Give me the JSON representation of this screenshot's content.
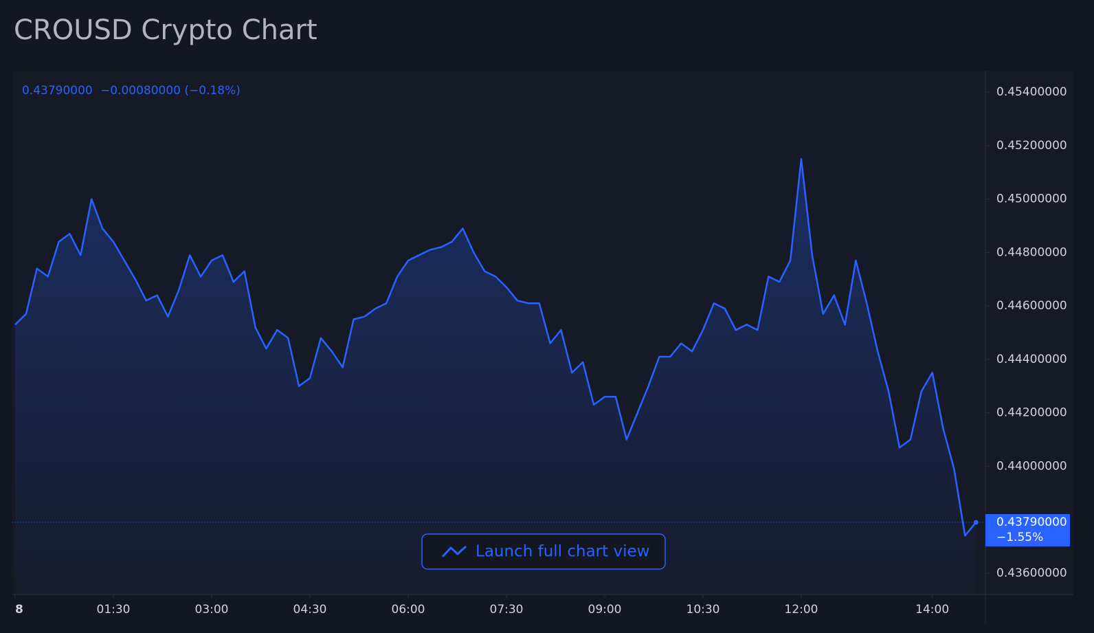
{
  "chart_data": {
    "type": "line",
    "title": "CROUSD Crypto Chart",
    "legend_change": "−0.00080000 (−0.18%)",
    "last_price": {
      "value": 0.4379,
      "label": "0.43790000",
      "change": "−1.55%"
    },
    "button": "Launch full chart view",
    "x": [
      "00:00",
      "00:10",
      "00:20",
      "00:30",
      "00:40",
      "00:50",
      "01:00",
      "01:10",
      "01:20",
      "01:30",
      "01:40",
      "01:50",
      "02:00",
      "02:10",
      "02:20",
      "02:30",
      "02:40",
      "02:50",
      "03:00",
      "03:10",
      "03:20",
      "03:30",
      "03:40",
      "03:50",
      "04:00",
      "04:10",
      "04:20",
      "04:30",
      "04:40",
      "04:50",
      "05:00",
      "05:10",
      "05:20",
      "05:30",
      "05:40",
      "05:50",
      "06:00",
      "06:10",
      "06:20",
      "06:30",
      "06:40",
      "06:50",
      "07:00",
      "07:10",
      "07:20",
      "07:30",
      "07:40",
      "07:50",
      "08:00",
      "08:10",
      "08:20",
      "08:30",
      "08:40",
      "08:50",
      "09:00",
      "09:10",
      "09:20",
      "09:30",
      "09:40",
      "09:50",
      "10:00",
      "10:10",
      "10:20",
      "10:30",
      "10:40",
      "10:50",
      "11:00",
      "11:10",
      "11:20",
      "11:30",
      "11:40",
      "11:50",
      "12:00",
      "12:10",
      "12:20",
      "12:30",
      "12:40",
      "12:50",
      "13:00",
      "13:10",
      "13:20",
      "13:30",
      "13:40",
      "13:50",
      "14:00",
      "14:10",
      "14:20",
      "14:30",
      "14:40"
    ],
    "series": [
      {
        "name": "CROUSD",
        "color": "#2962ff",
        "values": [
          0.4453,
          0.4457,
          0.4474,
          0.4471,
          0.4484,
          0.4487,
          0.4479,
          0.45,
          0.4489,
          0.4484,
          0.4477,
          0.447,
          0.4462,
          0.4464,
          0.4456,
          0.4466,
          0.4479,
          0.4471,
          0.4477,
          0.4479,
          0.4469,
          0.4473,
          0.4452,
          0.4444,
          0.4451,
          0.4448,
          0.443,
          0.4433,
          0.4448,
          0.4443,
          0.4437,
          0.4455,
          0.4456,
          0.4459,
          0.4461,
          0.4471,
          0.4477,
          0.4479,
          0.4481,
          0.4482,
          0.4484,
          0.4489,
          0.448,
          0.4473,
          0.4471,
          0.4467,
          0.4462,
          0.4461,
          0.4461,
          0.4446,
          0.4451,
          0.4435,
          0.4439,
          0.4423,
          0.4426,
          0.4426,
          0.441,
          0.442,
          0.443,
          0.4441,
          0.4441,
          0.4446,
          0.4443,
          0.4451,
          0.4461,
          0.4459,
          0.4451,
          0.4453,
          0.4451,
          0.4471,
          0.4469,
          0.4477,
          0.4515,
          0.4479,
          0.4457,
          0.4464,
          0.4453,
          0.4477,
          0.4461,
          0.4443,
          0.4428,
          0.4407,
          0.441,
          0.4428,
          0.4435,
          0.4414,
          0.4399,
          0.4374,
          0.4379
        ]
      }
    ],
    "ylim": [
      0.4352,
      0.4548
    ],
    "yticks": [
      {
        "value": 0.436,
        "label": "0.43600000"
      },
      {
        "value": 0.438,
        "label": "0.43800000"
      },
      {
        "value": 0.44,
        "label": "0.44000000"
      },
      {
        "value": 0.442,
        "label": "0.44200000"
      },
      {
        "value": 0.444,
        "label": "0.44400000"
      },
      {
        "value": 0.446,
        "label": "0.44600000"
      },
      {
        "value": 0.448,
        "label": "0.44800000"
      },
      {
        "value": 0.45,
        "label": "0.45000000"
      },
      {
        "value": 0.452,
        "label": "0.45200000"
      },
      {
        "value": 0.454,
        "label": "0.45400000"
      }
    ],
    "xticks": [
      {
        "value": "00:00",
        "label": "8"
      },
      "01:30",
      "03:00",
      "04:30",
      "06:00",
      "07:30",
      "09:00",
      "10:30",
      "12:00",
      "14:00"
    ]
  }
}
